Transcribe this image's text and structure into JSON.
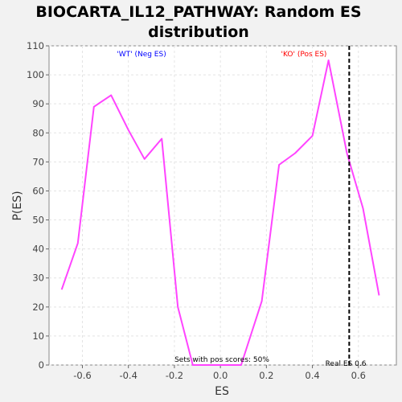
{
  "chart_data": {
    "type": "line",
    "title_line1": "BIOCARTA_IL12_PATHWAY: Random ES",
    "title_line2": "distribution",
    "xlabel": "ES",
    "ylabel": "P(ES)",
    "xlim": [
      -0.745,
      0.765
    ],
    "ylim": [
      0,
      110
    ],
    "xticks": [
      -0.6,
      -0.4,
      -0.2,
      0.0,
      0.2,
      0.4,
      0.6
    ],
    "xtick_labels": [
      "-0.6",
      "-0.4",
      "-0.2",
      "0.0",
      "0.2",
      "0.4",
      "0.6"
    ],
    "yticks": [
      0,
      10,
      20,
      30,
      40,
      50,
      60,
      70,
      80,
      90,
      100,
      110
    ],
    "ytick_labels": [
      "0",
      "10",
      "20",
      "30",
      "40",
      "50",
      "60",
      "70",
      "80",
      "90",
      "100",
      "110"
    ],
    "grid": true,
    "series": [
      {
        "color": "#ff44ff",
        "x": [
          -0.69,
          -0.62,
          -0.55,
          -0.475,
          -0.4,
          -0.33,
          -0.255,
          -0.185,
          -0.12,
          -0.05,
          0.02,
          0.09,
          0.18,
          0.255,
          0.325,
          0.4,
          0.47,
          0.55,
          0.62,
          0.69
        ],
        "y": [
          26,
          42,
          89,
          93,
          81,
          71,
          78,
          20,
          0,
          0,
          0,
          0,
          22,
          69,
          73,
          79,
          105,
          73,
          54,
          24
        ]
      }
    ],
    "real_es": 0.56,
    "annotations": {
      "neg_label": "'WT' (Neg ES)",
      "neg_color": "#0000ff",
      "pos_label": "'KO' (Pos ES)",
      "pos_color": "#ff0000",
      "sets_label": "Sets with pos scores: 50%",
      "real_es_label": "Real ES 0.6"
    }
  }
}
